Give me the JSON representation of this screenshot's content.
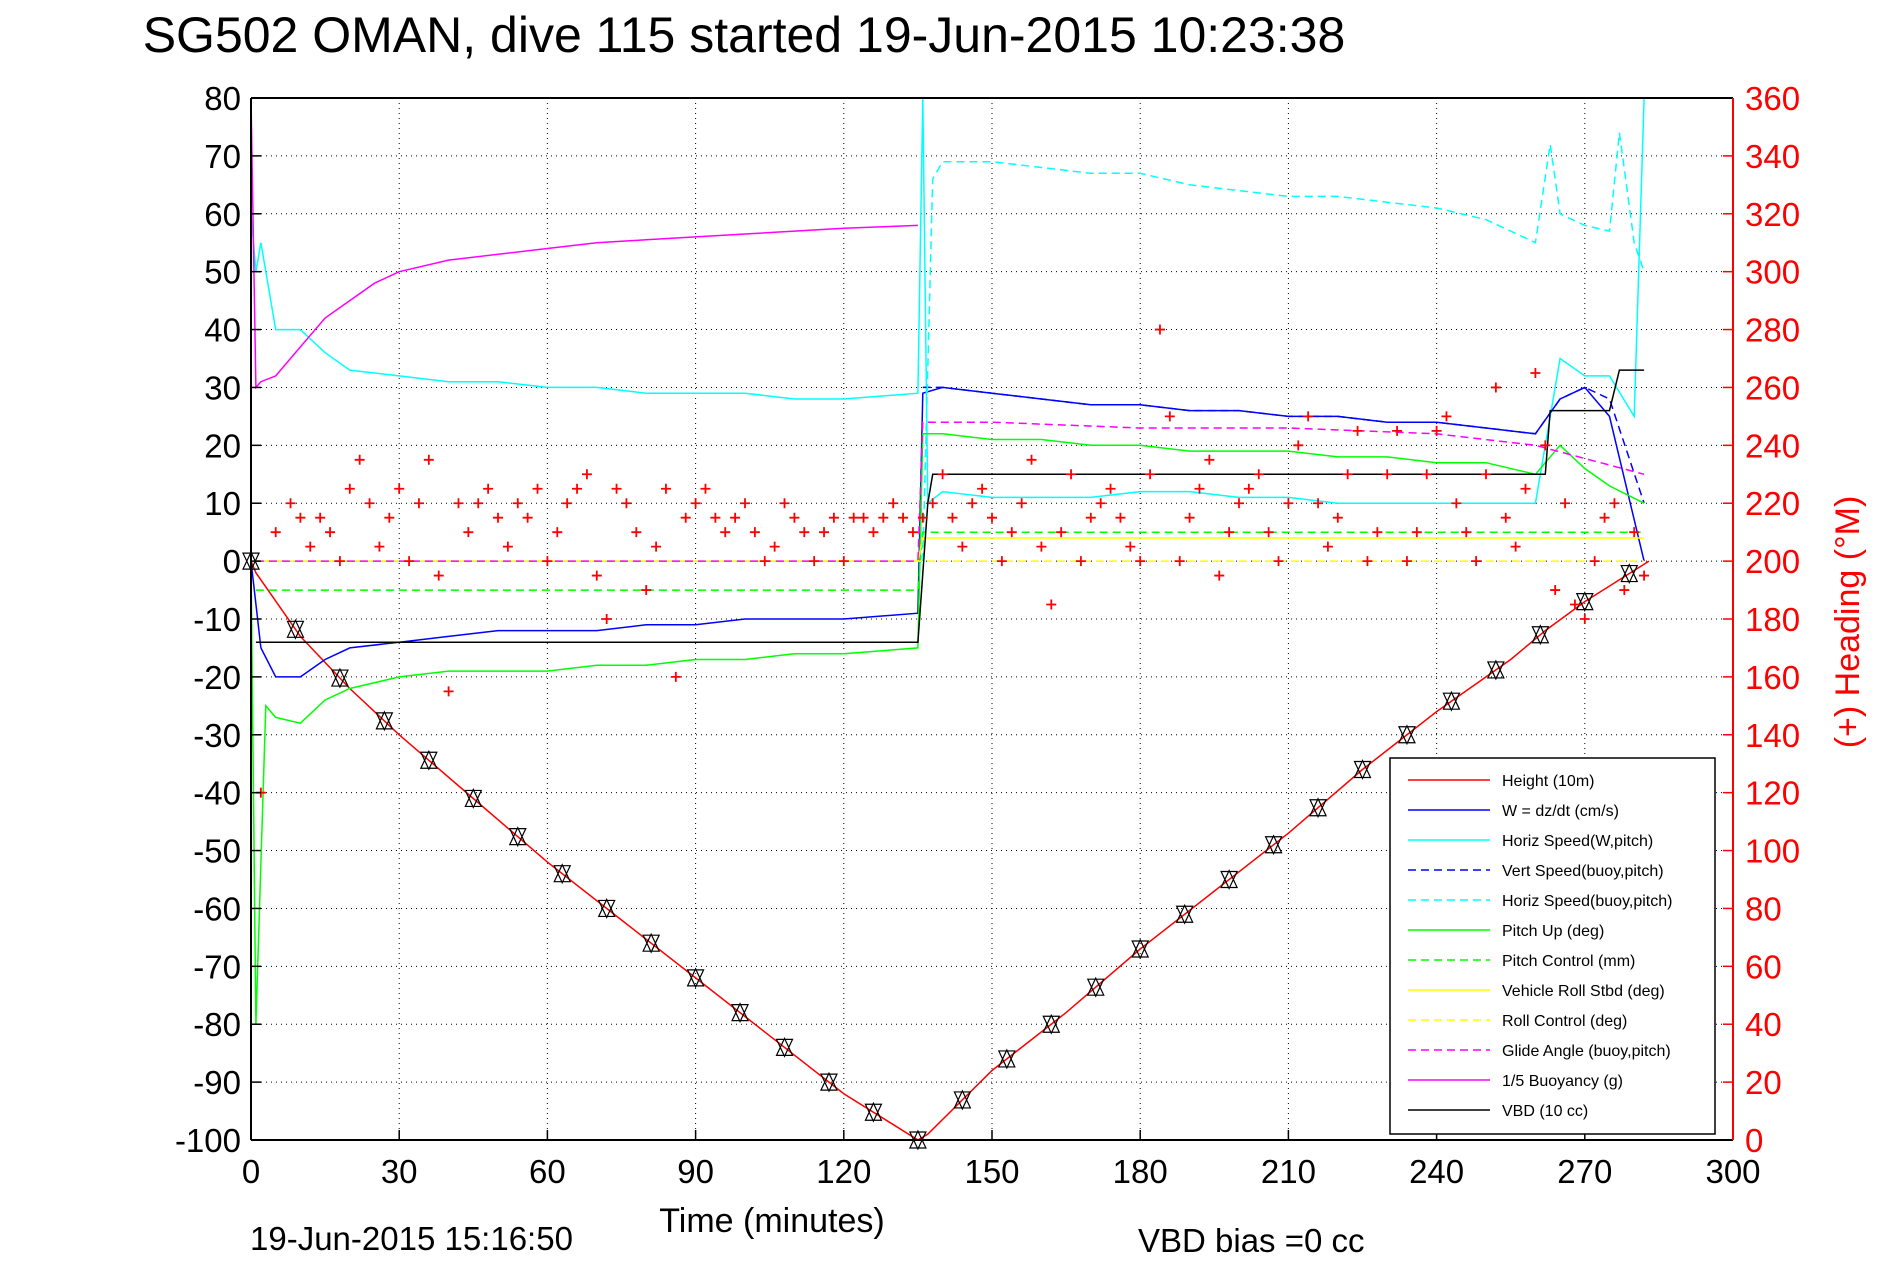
{
  "chart_data": {
    "type": "line",
    "title": "SG502 OMAN, dive 115 started 19-Jun-2015 10:23:38",
    "xlabel": "Time (minutes)",
    "ylabel": "",
    "ylabel_right": "(+) Heading (°M)",
    "xlim": [
      0,
      300
    ],
    "ylim": [
      -100,
      80
    ],
    "ylim_right": [
      0,
      360
    ],
    "xticks": [
      0,
      30,
      60,
      90,
      120,
      150,
      180,
      210,
      240,
      270,
      300
    ],
    "yticks": [
      80,
      70,
      60,
      50,
      40,
      30,
      20,
      10,
      0,
      -10,
      -20,
      -30,
      -40,
      -50,
      -60,
      -70,
      -80,
      -90,
      -100
    ],
    "yticks_right": [
      360,
      340,
      320,
      300,
      280,
      260,
      240,
      220,
      200,
      180,
      160,
      140,
      120,
      100,
      80,
      60,
      40,
      20,
      0
    ],
    "grid": true,
    "legend_position": "bottom-right",
    "footer_left": "19-Jun-2015 15:16:50",
    "footer_right": "VBD bias =0 cc",
    "colors": {
      "red": "#ff0000",
      "blue": "#0000ff",
      "cyan": "#00ffff",
      "green": "#00ff00",
      "yellow": "#ffff00",
      "magenta": "#ff00ff",
      "black": "#000000"
    },
    "series": [
      {
        "name": "Height (10m)",
        "color": "#ff0000",
        "style": "solid",
        "x": [
          0,
          1,
          10,
          20,
          30,
          45,
          60,
          75,
          90,
          105,
          120,
          135,
          137,
          150,
          165,
          180,
          195,
          210,
          225,
          240,
          255,
          262,
          270,
          283
        ],
        "y": [
          0,
          -2,
          -13,
          -22,
          -30,
          -41,
          -52,
          -62,
          -72,
          -82,
          -92,
          -100,
          -99,
          -88,
          -78,
          -67,
          -57,
          -47,
          -36,
          -26,
          -17,
          -12,
          -7,
          0
        ]
      },
      {
        "name": "W = dz/dt (cm/s)",
        "color": "#0000ff",
        "style": "solid",
        "x": [
          0,
          2,
          5,
          10,
          15,
          20,
          30,
          40,
          50,
          60,
          70,
          80,
          90,
          100,
          110,
          120,
          135,
          136,
          140,
          150,
          160,
          170,
          180,
          190,
          200,
          210,
          220,
          230,
          240,
          250,
          260,
          265,
          270,
          275,
          282
        ],
        "y": [
          0,
          -15,
          -20,
          -20,
          -17,
          -15,
          -14,
          -13,
          -12,
          -12,
          -12,
          -11,
          -11,
          -10,
          -10,
          -10,
          -9,
          29,
          30,
          29,
          28,
          27,
          27,
          26,
          26,
          25,
          25,
          24,
          24,
          23,
          22,
          28,
          30,
          25,
          0
        ]
      },
      {
        "name": "Horiz Speed(W,pitch)",
        "color": "#00ffff",
        "style": "solid",
        "x": [
          0,
          1,
          2,
          5,
          10,
          15,
          20,
          30,
          40,
          50,
          60,
          70,
          80,
          90,
          100,
          110,
          120,
          135,
          136,
          137,
          140,
          150,
          160,
          170,
          180,
          190,
          200,
          210,
          220,
          230,
          240,
          250,
          260,
          265,
          270,
          275,
          280,
          282
        ],
        "y": [
          60,
          50,
          55,
          40,
          40,
          36,
          33,
          32,
          31,
          31,
          30,
          30,
          29,
          29,
          29,
          28,
          28,
          29,
          80,
          10,
          12,
          11,
          11,
          11,
          12,
          12,
          11,
          11,
          10,
          10,
          10,
          10,
          10,
          35,
          32,
          32,
          25,
          80
        ]
      },
      {
        "name": "Vert Speed(buoy,pitch)",
        "color": "#0000ff",
        "style": "dashed",
        "x": [
          136,
          140,
          150,
          160,
          170,
          180,
          190,
          200,
          210,
          220,
          230,
          240,
          250,
          260,
          265,
          270,
          275,
          282
        ],
        "y": [
          30,
          30,
          29,
          28,
          27,
          27,
          26,
          26,
          25,
          25,
          24,
          24,
          23,
          22,
          28,
          30,
          28,
          10
        ]
      },
      {
        "name": "Horiz Speed(buoy,pitch)",
        "color": "#00ffff",
        "style": "dashed",
        "x": [
          136,
          138,
          140,
          150,
          160,
          170,
          180,
          190,
          200,
          210,
          220,
          230,
          240,
          250,
          255,
          260,
          263,
          265,
          270,
          275,
          277,
          280,
          282
        ],
        "y": [
          0,
          66,
          69,
          69,
          68,
          67,
          67,
          65,
          64,
          63,
          63,
          62,
          61,
          59,
          57,
          55,
          72,
          60,
          58,
          57,
          74,
          55,
          50
        ]
      },
      {
        "name": "Pitch Up (deg)",
        "color": "#00ff00",
        "style": "solid",
        "x": [
          0,
          1,
          3,
          5,
          10,
          15,
          20,
          30,
          40,
          50,
          60,
          70,
          80,
          90,
          100,
          110,
          120,
          135,
          136,
          140,
          150,
          160,
          170,
          180,
          190,
          200,
          210,
          220,
          230,
          240,
          250,
          260,
          265,
          270,
          275,
          282
        ],
        "y": [
          0,
          -80,
          -25,
          -27,
          -28,
          -24,
          -22,
          -20,
          -19,
          -19,
          -19,
          -18,
          -18,
          -17,
          -17,
          -16,
          -16,
          -15,
          22,
          22,
          21,
          21,
          20,
          20,
          19,
          19,
          19,
          18,
          18,
          17,
          17,
          15,
          20,
          16,
          13,
          10
        ]
      },
      {
        "name": "Pitch Control (mm)",
        "color": "#00ff00",
        "style": "dashed",
        "x": [
          1,
          135,
          136,
          282
        ],
        "y": [
          -5,
          -5,
          5,
          5
        ]
      },
      {
        "name": "Vehicle Roll Stbd (deg)",
        "color": "#ffff00",
        "style": "solid",
        "x": [
          0,
          135,
          136,
          282
        ],
        "y": [
          0,
          0,
          4,
          4
        ]
      },
      {
        "name": "Roll Control (deg)",
        "color": "#ffff00",
        "style": "dashed",
        "x": [
          0,
          282
        ],
        "y": [
          0,
          0
        ]
      },
      {
        "name": "Glide Angle (buoy,pitch)",
        "color": "#ff00ff",
        "style": "dashed",
        "x": [
          1,
          135,
          136,
          150,
          180,
          210,
          240,
          260,
          282
        ],
        "y": [
          0,
          0,
          24,
          24,
          23,
          23,
          22,
          20,
          15
        ]
      },
      {
        "name": "1/5 Buoyancy (g)",
        "color": "#ff00ff",
        "style": "solid",
        "x": [
          0,
          1,
          2,
          5,
          10,
          15,
          20,
          25,
          30,
          40,
          50,
          60,
          70,
          80,
          90,
          100,
          110,
          120,
          135
        ],
        "y": [
          80,
          30,
          31,
          32,
          37,
          42,
          45,
          48,
          50,
          52,
          53,
          54,
          55,
          55.5,
          56,
          56.5,
          57,
          57.5,
          58
        ]
      },
      {
        "name": "VBD (10 cc)",
        "color": "#000000",
        "style": "solid",
        "x": [
          1,
          135,
          137,
          138,
          262,
          263,
          275,
          277,
          282
        ],
        "y": [
          -14,
          -14,
          10,
          15,
          15,
          26,
          26,
          33,
          33
        ]
      }
    ],
    "heading_series": {
      "name": "(+) Heading (°M)",
      "color": "#ff0000",
      "marker": "+",
      "x": [
        2,
        5,
        8,
        10,
        12,
        14,
        16,
        18,
        20,
        22,
        24,
        26,
        28,
        30,
        32,
        34,
        36,
        38,
        40,
        42,
        44,
        46,
        48,
        50,
        52,
        54,
        56,
        58,
        60,
        62,
        64,
        66,
        68,
        70,
        72,
        74,
        76,
        78,
        80,
        82,
        84,
        86,
        88,
        90,
        92,
        94,
        96,
        98,
        100,
        102,
        104,
        106,
        108,
        110,
        112,
        114,
        116,
        118,
        120,
        122,
        124,
        126,
        128,
        130,
        132,
        134,
        136,
        138,
        140,
        142,
        144,
        146,
        148,
        150,
        152,
        154,
        156,
        158,
        160,
        162,
        164,
        166,
        168,
        170,
        172,
        174,
        176,
        178,
        180,
        182,
        184,
        186,
        188,
        190,
        192,
        194,
        196,
        198,
        200,
        202,
        204,
        206,
        208,
        210,
        212,
        214,
        216,
        218,
        220,
        222,
        224,
        226,
        228,
        230,
        232,
        234,
        236,
        238,
        240,
        242,
        244,
        246,
        248,
        250,
        252,
        254,
        256,
        258,
        260,
        262,
        264,
        266,
        268,
        270,
        272,
        274,
        276,
        278,
        280,
        282
      ],
      "y": [
        120,
        210,
        220,
        215,
        205,
        215,
        210,
        200,
        225,
        235,
        220,
        205,
        215,
        225,
        200,
        220,
        235,
        195,
        155,
        220,
        210,
        220,
        225,
        215,
        205,
        220,
        215,
        225,
        200,
        210,
        220,
        225,
        230,
        195,
        180,
        225,
        220,
        210,
        190,
        205,
        225,
        160,
        215,
        220,
        225,
        215,
        210,
        215,
        220,
        210,
        200,
        205,
        220,
        215,
        210,
        200,
        210,
        215,
        200,
        215,
        215,
        210,
        215,
        220,
        215,
        210,
        215,
        220,
        230,
        215,
        205,
        220,
        225,
        215,
        200,
        210,
        220,
        235,
        205,
        185,
        210,
        230,
        200,
        215,
        220,
        225,
        215,
        205,
        200,
        230,
        280,
        250,
        200,
        215,
        225,
        235,
        195,
        210,
        220,
        225,
        230,
        210,
        200,
        220,
        240,
        250,
        220,
        205,
        215,
        230,
        245,
        200,
        210,
        230,
        245,
        200,
        210,
        230,
        245,
        250,
        220,
        210,
        200,
        230,
        260,
        215,
        205,
        225,
        265,
        240,
        190,
        220,
        185,
        180,
        200,
        215,
        220,
        190,
        210,
        195
      ]
    }
  }
}
